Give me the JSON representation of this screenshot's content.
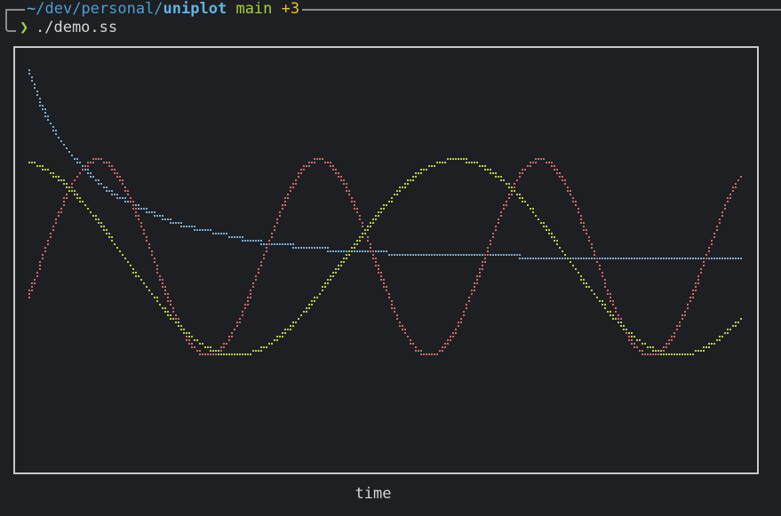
{
  "prompt": {
    "tilde": "~",
    "path": "/dev/personal/",
    "dir": "uniplot",
    "branch": "main",
    "status": "+3"
  },
  "command": {
    "symbol": "❯",
    "text": "./demo.ss"
  },
  "chart_data": {
    "type": "scatter",
    "xlabel": "time",
    "ylabel": "",
    "xlim": [
      0,
      100
    ],
    "ylim": [
      -1.2,
      1.2
    ],
    "series": [
      {
        "color": "#7aaed1",
        "shape": "decay",
        "x": [
          0,
          2,
          4,
          6,
          8,
          10,
          12,
          15,
          18,
          20,
          22,
          25,
          28,
          30,
          32,
          35,
          38,
          40,
          42,
          45,
          48,
          50,
          52,
          55,
          58,
          60,
          62,
          65,
          68,
          70,
          72,
          75,
          78,
          80,
          82,
          85,
          88,
          90,
          92,
          95,
          98,
          100
        ],
        "y": [
          1.18,
          0.95,
          0.78,
          0.65,
          0.56,
          0.47,
          0.4,
          0.33,
          0.27,
          0.23,
          0.2,
          0.17,
          0.14,
          0.12,
          0.1,
          0.08,
          0.07,
          0.06,
          0.05,
          0.04,
          0.03,
          0.03,
          0.02,
          0.02,
          0.02,
          0.01,
          0.01,
          0.01,
          0.01,
          0.0,
          0.0,
          0.0,
          0.0,
          0.0,
          0.0,
          0.0,
          0.0,
          0.0,
          0.0,
          0.0,
          0.0,
          0.0
        ]
      },
      {
        "color": "#cd6a6a",
        "shape": "sine-fast",
        "amplitude": 0.62,
        "period": 31,
        "phase": 0.3
      },
      {
        "color": "#b9cf45",
        "shape": "cos-slow",
        "amplitude": 0.62,
        "period": 62,
        "phase": 0.0
      }
    ]
  }
}
